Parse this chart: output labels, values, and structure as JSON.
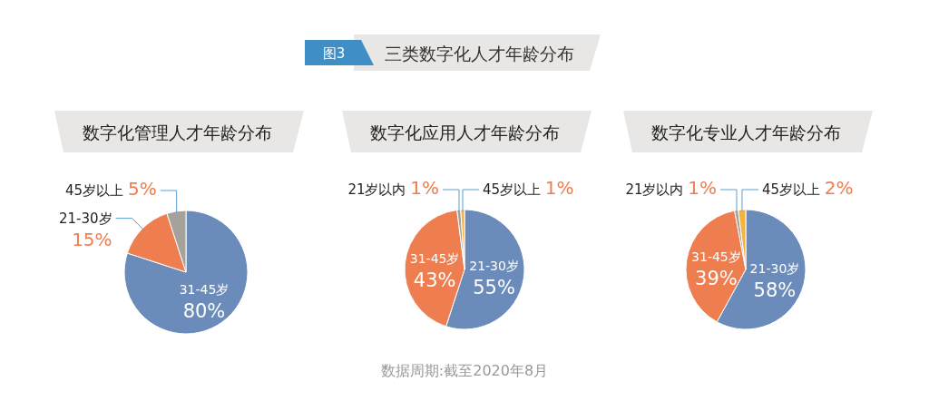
{
  "chart_data": [
    {
      "type": "other",
      "title": "三类数字化人才年龄分布",
      "annotations": [
        "图3",
        "数据周期:截至2020年8月"
      ]
    },
    {
      "type": "pie",
      "title": "数字化管理人才年龄分布",
      "categories": [
        "31-45岁",
        "21-30岁",
        "45岁以上"
      ],
      "values": [
        80,
        15,
        5
      ],
      "colors": [
        "#6b8cba",
        "#ee7d4f",
        "#a5a19b"
      ],
      "value_labels": [
        "80%",
        "15%",
        "5%"
      ]
    },
    {
      "type": "pie",
      "title": "数字化应用人才年龄分布",
      "categories": [
        "21-30岁",
        "31-45岁",
        "21岁以内",
        "45岁以上"
      ],
      "values": [
        55,
        43,
        1,
        1
      ],
      "colors": [
        "#6b8cba",
        "#ee7d4f",
        "#a5a19b",
        "#f3b33f"
      ],
      "value_labels": [
        "55%",
        "43%",
        "1%",
        "1%"
      ]
    },
    {
      "type": "pie",
      "title": "数字化专业人才年龄分布",
      "categories": [
        "21-30岁",
        "31-45岁",
        "21岁以内",
        "45岁以上"
      ],
      "values": [
        58,
        39,
        1,
        2
      ],
      "colors": [
        "#6b8cba",
        "#ee7d4f",
        "#a5a19b",
        "#f3b33f"
      ],
      "value_labels": [
        "58%",
        "39%",
        "1%",
        "2%"
      ]
    }
  ]
}
